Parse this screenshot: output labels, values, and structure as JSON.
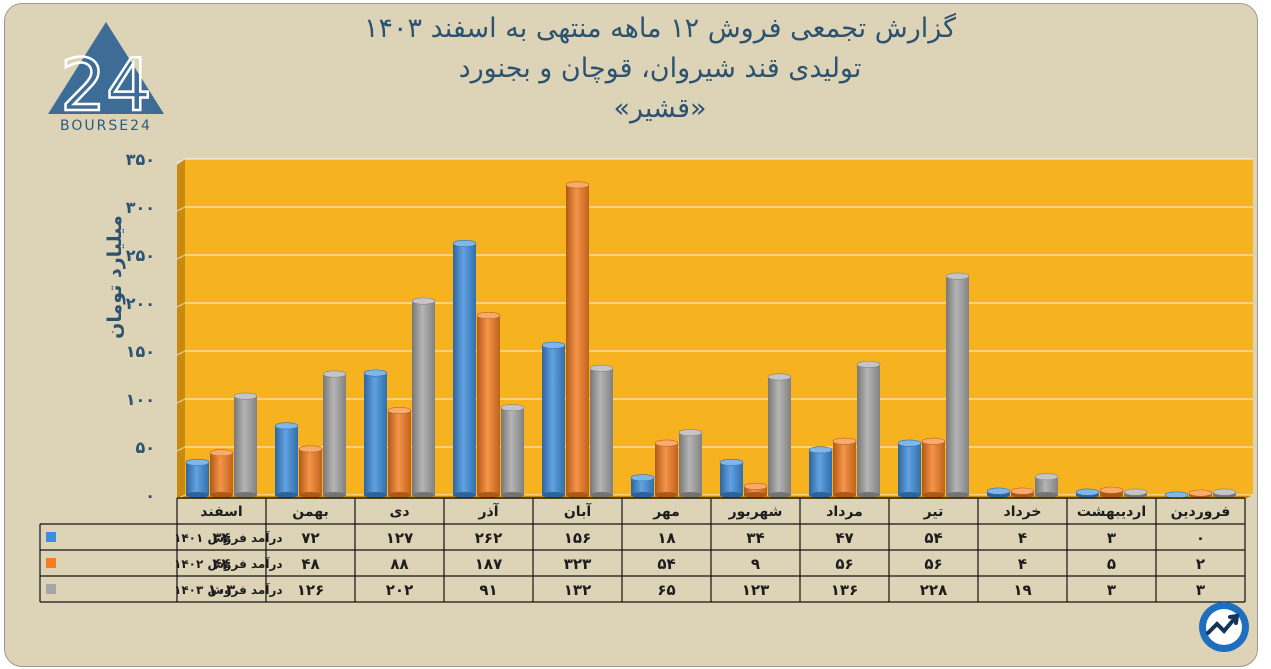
{
  "title": {
    "line1": "گزارش تجمعی فروش ۱۲ ماهه منتهی به اسفند ۱۴۰۳",
    "line2": "تولیدی قند شیروان، قوچان و بجنورد",
    "line3": "«قشیر»"
  },
  "logo": {
    "text": "BOURSE24",
    "numeral": "24"
  },
  "colors": {
    "background": "#ddd4b7",
    "plot": "#f7b21f",
    "series1": "#3f8edc",
    "series2": "#f47d22",
    "series3": "#a5a5a5",
    "text": "#2b5271"
  },
  "chart_data": {
    "type": "bar",
    "ylabel": "میلیارد تومان",
    "ylim": [
      0,
      350
    ],
    "yticks": [
      0,
      50,
      100,
      150,
      200,
      250,
      300,
      350
    ],
    "ytick_labels": [
      "۰",
      "۵۰",
      "۱۰۰",
      "۱۵۰",
      "۲۰۰",
      "۲۵۰",
      "۳۰۰",
      "۳۵۰"
    ],
    "grid": true,
    "categories": [
      "فروردین",
      "اردیبهشت",
      "خرداد",
      "تیر",
      "مرداد",
      "شهریور",
      "مهر",
      "آبان",
      "آذر",
      "دی",
      "بهمن",
      "اسفند"
    ],
    "series": [
      {
        "name": "درآمد فروش ۱۴۰۱",
        "values": [
          0,
          3,
          4,
          54,
          47,
          34,
          18,
          156,
          262,
          127,
          72,
          34
        ],
        "labels": [
          "۰",
          "۳",
          "۴",
          "۵۴",
          "۴۷",
          "۳۴",
          "۱۸",
          "۱۵۶",
          "۲۶۲",
          "۱۲۷",
          "۷۲",
          "۳۴"
        ]
      },
      {
        "name": "درآمد فروش ۱۴۰۲",
        "values": [
          2,
          5,
          4,
          56,
          56,
          9,
          54,
          323,
          187,
          88,
          48,
          44
        ],
        "labels": [
          "۲",
          "۵",
          "۴",
          "۵۶",
          "۵۶",
          "۹",
          "۵۴",
          "۳۲۳",
          "۱۸۷",
          "۸۸",
          "۴۸",
          "۴۴"
        ]
      },
      {
        "name": "درآمد فروش ۱۴۰۳",
        "values": [
          3,
          3,
          19,
          228,
          136,
          123,
          65,
          132,
          91,
          202,
          126,
          103
        ],
        "labels": [
          "۳",
          "۳",
          "۱۹",
          "۲۲۸",
          "۱۳۶",
          "۱۲۳",
          "۶۵",
          "۱۳۲",
          "۹۱",
          "۲۰۲",
          "۱۲۶",
          "۱۰۳"
        ]
      }
    ]
  }
}
